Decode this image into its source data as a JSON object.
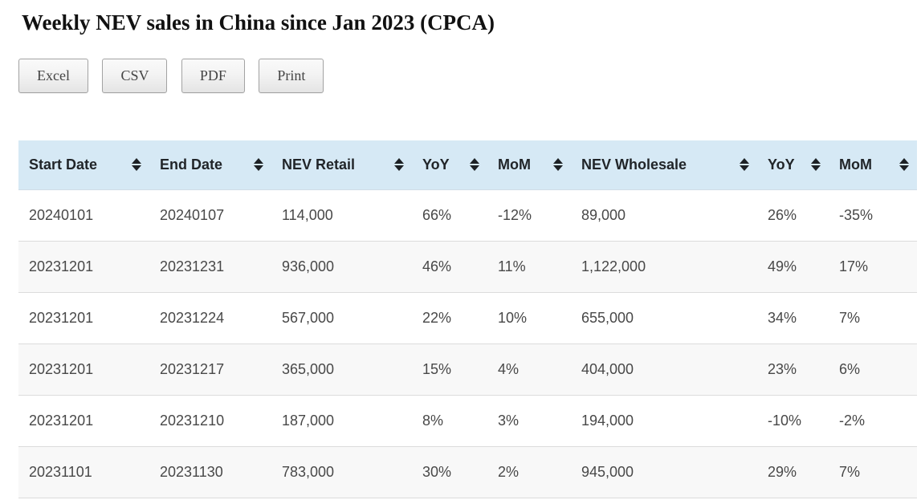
{
  "page": {
    "title": "Weekly NEV sales in China since Jan 2023 (CPCA)"
  },
  "toolbar": {
    "buttons": [
      {
        "id": "excel",
        "label": "Excel"
      },
      {
        "id": "csv",
        "label": "CSV"
      },
      {
        "id": "pdf",
        "label": "PDF"
      },
      {
        "id": "print",
        "label": "Print"
      }
    ]
  },
  "table": {
    "columns": [
      {
        "id": "start_date",
        "label": "Start Date",
        "sortable": true
      },
      {
        "id": "end_date",
        "label": "End Date",
        "sortable": true
      },
      {
        "id": "nev_retail",
        "label": "NEV Retail",
        "sortable": true
      },
      {
        "id": "yoy_retail",
        "label": "YoY",
        "sortable": true
      },
      {
        "id": "mom_retail",
        "label": "MoM",
        "sortable": true
      },
      {
        "id": "nev_wholesale",
        "label": "NEV Wholesale",
        "sortable": true
      },
      {
        "id": "yoy_wholesale",
        "label": "YoY",
        "sortable": true
      },
      {
        "id": "mom_wholesale",
        "label": "MoM",
        "sortable": true
      }
    ],
    "rows": [
      [
        "20240101",
        "20240107",
        "114,000",
        "66%",
        "-12%",
        "89,000",
        "26%",
        "-35%"
      ],
      [
        "20231201",
        "20231231",
        "936,000",
        "46%",
        "11%",
        "1,122,000",
        "49%",
        "17%"
      ],
      [
        "20231201",
        "20231224",
        "567,000",
        "22%",
        "10%",
        "655,000",
        "34%",
        "7%"
      ],
      [
        "20231201",
        "20231217",
        "365,000",
        "15%",
        "4%",
        "404,000",
        "23%",
        "6%"
      ],
      [
        "20231201",
        "20231210",
        "187,000",
        "8%",
        "3%",
        "194,000",
        "-10%",
        "-2%"
      ],
      [
        "20231101",
        "20231130",
        "783,000",
        "30%",
        "2%",
        "945,000",
        "29%",
        "7%"
      ]
    ]
  },
  "colors": {
    "header_bg": "#d6e9f5",
    "stripe_bg": "#f8f8f8",
    "row_border": "#dcdcdc"
  }
}
